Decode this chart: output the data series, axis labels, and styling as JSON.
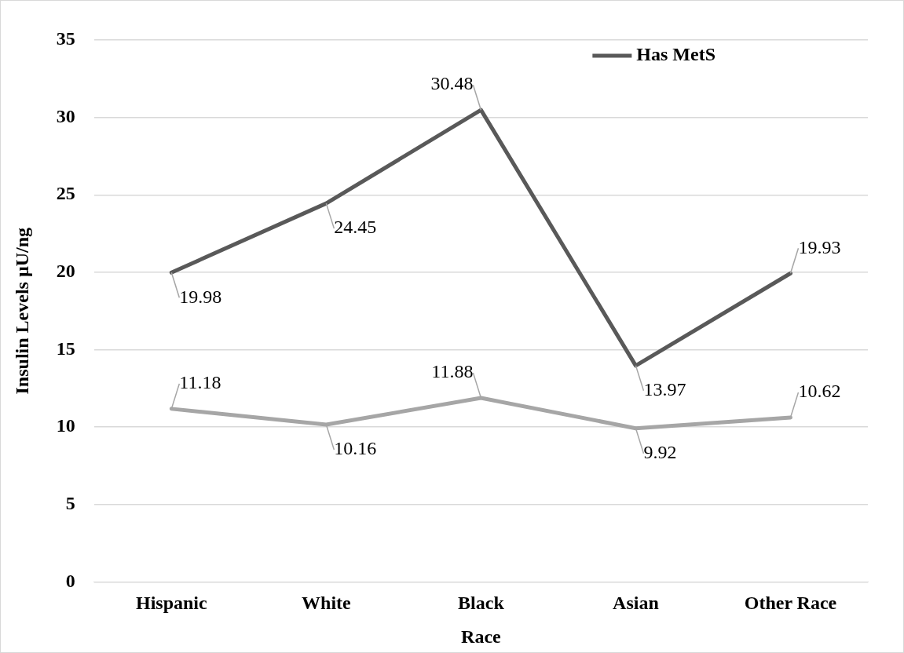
{
  "chart_data": {
    "type": "line",
    "xlabel": "Race",
    "ylabel": "Insulin Levels µU/ng",
    "categories": [
      "Hispanic",
      "White",
      "Black",
      "Asian",
      "Other Race"
    ],
    "series": [
      {
        "name": "Has MetS",
        "color": "#595959",
        "values": [
          19.98,
          24.45,
          30.48,
          13.97,
          19.93
        ]
      },
      {
        "color": "#a6a6a6",
        "values": [
          11.18,
          10.16,
          11.88,
          9.92,
          10.62
        ]
      }
    ],
    "ylim": [
      0,
      35
    ],
    "yticks": [
      0,
      5,
      10,
      15,
      20,
      25,
      30,
      35
    ],
    "grid": "y",
    "legend": "top right",
    "marker": "none",
    "line_style": "solid",
    "data_labels": true
  }
}
